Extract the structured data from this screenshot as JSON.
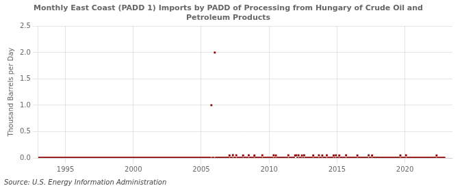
{
  "chart_data": {
    "type": "scatter",
    "title": "Monthly East Coast (PADD 1) Imports by PADD of Processing from Hungary of Crude Oil and\nPetroleum Products",
    "ylabel": "Thousand Barrels per Day",
    "annotation": "Source: U.S. Energy Information Administration",
    "color": "#8b0000",
    "marker": "square",
    "grid": true,
    "xlim": [
      1993.0,
      2023.5
    ],
    "ylim": [
      0,
      2.5
    ],
    "xticks": [
      1995,
      2000,
      2005,
      2010,
      2015,
      2020
    ],
    "yticks": [
      {
        "value": 0.0,
        "label": "0.0"
      },
      0.5,
      {
        "value": 1.0,
        "label": "1.0"
      },
      1.5,
      {
        "value": 2.0,
        "label": "2.0"
      },
      2.5
    ],
    "x": [
      1993.0,
      1993.083,
      1993.167,
      1993.25,
      1993.333,
      1993.417,
      1993.5,
      1993.583,
      1993.667,
      1993.75,
      1993.833,
      1993.917,
      1994.0,
      1994.083,
      1994.167,
      1994.25,
      1994.333,
      1994.417,
      1994.5,
      1994.583,
      1994.667,
      1994.75,
      1994.833,
      1994.917,
      1995.0,
      1995.083,
      1995.167,
      1995.25,
      1995.333,
      1995.417,
      1995.5,
      1995.583,
      1995.667,
      1995.75,
      1995.833,
      1995.917,
      1996.0,
      1996.083,
      1996.167,
      1996.25,
      1996.333,
      1996.417,
      1996.5,
      1996.583,
      1996.667,
      1996.75,
      1996.833,
      1996.917,
      1997.0,
      1997.083,
      1997.167,
      1997.25,
      1997.333,
      1997.417,
      1997.5,
      1997.583,
      1997.667,
      1997.75,
      1997.833,
      1997.917,
      1998.0,
      1998.083,
      1998.167,
      1998.25,
      1998.333,
      1998.417,
      1998.5,
      1998.583,
      1998.667,
      1998.75,
      1998.833,
      1998.917,
      1999.0,
      1999.083,
      1999.167,
      1999.25,
      1999.333,
      1999.417,
      1999.5,
      1999.583,
      1999.667,
      1999.75,
      1999.833,
      1999.917,
      2000.0,
      2000.083,
      2000.167,
      2000.25,
      2000.333,
      2000.417,
      2000.5,
      2000.583,
      2000.667,
      2000.75,
      2000.833,
      2000.917,
      2001.0,
      2001.083,
      2001.167,
      2001.25,
      2001.333,
      2001.417,
      2001.5,
      2001.583,
      2001.667,
      2001.75,
      2001.833,
      2001.917,
      2002.0,
      2002.083,
      2002.167,
      2002.25,
      2002.333,
      2002.417,
      2002.5,
      2002.583,
      2002.667,
      2002.75,
      2002.833,
      2002.917,
      2003.0,
      2003.083,
      2003.167,
      2003.25,
      2003.333,
      2003.417,
      2003.5,
      2003.583,
      2003.667,
      2003.75,
      2003.833,
      2003.917,
      2004.0,
      2004.083,
      2004.167,
      2004.25,
      2004.333,
      2004.417,
      2004.5,
      2004.583,
      2004.667,
      2004.75,
      2004.833,
      2004.917,
      2005.0,
      2005.083,
      2005.167,
      2005.25,
      2005.333,
      2005.417,
      2005.5,
      2005.583,
      2005.667,
      2005.75,
      2005.833,
      2005.917,
      2006.0,
      2006.083,
      2006.167,
      2006.25,
      2006.333,
      2006.417,
      2006.5,
      2006.583,
      2006.667,
      2006.75,
      2006.833,
      2006.917,
      2007.0,
      2007.083,
      2007.167,
      2007.25,
      2007.333,
      2007.417,
      2007.5,
      2007.583,
      2007.667,
      2007.75,
      2007.833,
      2007.917,
      2008.0,
      2008.083,
      2008.167,
      2008.25,
      2008.333,
      2008.417,
      2008.5,
      2008.583,
      2008.667,
      2008.75,
      2008.833,
      2008.917,
      2009.0,
      2009.083,
      2009.167,
      2009.25,
      2009.333,
      2009.417,
      2009.5,
      2009.583,
      2009.667,
      2009.75,
      2009.833,
      2009.917,
      2010.0,
      2010.083,
      2010.167,
      2010.25,
      2010.333,
      2010.417,
      2010.5,
      2010.583,
      2010.667,
      2010.75,
      2010.833,
      2010.917,
      2011.0,
      2011.083,
      2011.167,
      2011.25,
      2011.333,
      2011.417,
      2011.5,
      2011.583,
      2011.667,
      2011.75,
      2011.833,
      2011.917,
      2012.0,
      2012.083,
      2012.167,
      2012.25,
      2012.333,
      2012.417,
      2012.5,
      2012.583,
      2012.667,
      2012.75,
      2012.833,
      2012.917,
      2013.0,
      2013.083,
      2013.167,
      2013.25,
      2013.333,
      2013.417,
      2013.5,
      2013.583,
      2013.667,
      2013.75,
      2013.833,
      2013.917,
      2014.0,
      2014.083,
      2014.167,
      2014.25,
      2014.333,
      2014.417,
      2014.5,
      2014.583,
      2014.667,
      2014.75,
      2014.833,
      2014.917,
      2015.0,
      2015.083,
      2015.167,
      2015.25,
      2015.333,
      2015.417,
      2015.5,
      2015.583,
      2015.667,
      2015.75,
      2015.833,
      2015.917,
      2016.0,
      2016.083,
      2016.167,
      2016.25,
      2016.333,
      2016.417,
      2016.5,
      2016.583,
      2016.667,
      2016.75,
      2016.833,
      2016.917,
      2017.0,
      2017.083,
      2017.167,
      2017.25,
      2017.333,
      2017.417,
      2017.5,
      2017.583,
      2017.667,
      2017.75,
      2017.833,
      2017.917,
      2018.0,
      2018.083,
      2018.167,
      2018.25,
      2018.333,
      2018.417,
      2018.5,
      2018.583,
      2018.667,
      2018.75,
      2018.833,
      2018.917,
      2019.0,
      2019.083,
      2019.167,
      2019.25,
      2019.333,
      2019.417,
      2019.5,
      2019.583,
      2019.667,
      2019.75,
      2019.833,
      2019.917,
      2020.0,
      2020.083,
      2020.167,
      2020.25,
      2020.333,
      2020.417,
      2020.5,
      2020.583,
      2020.667,
      2020.75,
      2020.833,
      2020.917,
      2021.0,
      2021.083,
      2021.167,
      2021.25,
      2021.333,
      2021.417,
      2021.5,
      2021.583,
      2021.667,
      2021.75,
      2021.833,
      2021.917,
      2022.0,
      2022.083,
      2022.167,
      2022.25,
      2022.333,
      2022.417,
      2022.5,
      2022.583,
      2022.667,
      2022.75,
      2022.833,
      2022.917
    ],
    "values": [
      0.0,
      0.0,
      0.0,
      0.0,
      0.0,
      0.0,
      0.0,
      0.0,
      0.0,
      0.0,
      0.0,
      0.0,
      0.0,
      0.0,
      0.0,
      0.0,
      0.0,
      0.0,
      0.0,
      0.0,
      0.0,
      0.0,
      0.0,
      0.0,
      0.0,
      0.0,
      0.0,
      0.0,
      0.0,
      0.0,
      0.0,
      0.0,
      0.0,
      0.0,
      0.0,
      0.0,
      0.0,
      0.0,
      0.0,
      0.0,
      0.0,
      0.0,
      0.0,
      0.0,
      0.0,
      0.0,
      0.0,
      0.0,
      0.0,
      0.0,
      0.0,
      0.0,
      0.0,
      0.0,
      0.0,
      0.0,
      0.0,
      0.0,
      0.0,
      0.0,
      0.0,
      0.0,
      0.0,
      0.0,
      0.0,
      0.0,
      0.0,
      0.0,
      0.0,
      0.0,
      0.0,
      0.0,
      0.0,
      0.0,
      0.0,
      0.0,
      0.0,
      0.0,
      0.0,
      0.0,
      0.0,
      0.0,
      0.0,
      0.0,
      0.0,
      0.0,
      0.0,
      0.0,
      0.0,
      0.0,
      0.0,
      0.0,
      0.0,
      0.0,
      0.0,
      0.0,
      0.0,
      0.0,
      0.0,
      0.0,
      0.0,
      0.0,
      0.0,
      0.0,
      0.0,
      0.0,
      0.0,
      0.0,
      0.0,
      0.0,
      0.0,
      0.0,
      0.0,
      0.0,
      0.0,
      0.0,
      0.0,
      0.0,
      0.0,
      0.0,
      0.0,
      0.0,
      0.0,
      0.0,
      0.0,
      0.0,
      0.0,
      0.0,
      0.0,
      0.0,
      0.0,
      0.0,
      0.0,
      0.0,
      0.0,
      0.0,
      0.0,
      0.0,
      0.0,
      0.0,
      0.0,
      0.0,
      0.0,
      0.0,
      0.0,
      0.0,
      0.0,
      0.0,
      0.0,
      0.0,
      0.0,
      0.0,
      0.0,
      1.0,
      0.0,
      0.0,
      2.0,
      0.0,
      0.0,
      0.0,
      0.0,
      0.0,
      0.0,
      0.0,
      0.0,
      0.0,
      0.0,
      0.0,
      0.0,
      0.047,
      0.0,
      0.0,
      0.052,
      0.0,
      0.0,
      0.05,
      0.0,
      0.0,
      0.0,
      0.0,
      0.0,
      0.048,
      0.0,
      0.0,
      0.0,
      0.0,
      0.05,
      0.0,
      0.0,
      0.0,
      0.0,
      0.045,
      0.0,
      0.0,
      0.0,
      0.0,
      0.0,
      0.0,
      0.05,
      0.0,
      0.0,
      0.0,
      0.0,
      0.0,
      0.0,
      0.0,
      0.0,
      0.0,
      0.05,
      0.0,
      0.048,
      0.0,
      0.0,
      0.0,
      0.0,
      0.0,
      0.0,
      0.0,
      0.0,
      0.0,
      0.0,
      0.05,
      0.0,
      0.0,
      0.0,
      0.0,
      0.0,
      0.048,
      0.05,
      0.0,
      0.05,
      0.0,
      0.0,
      0.048,
      0.0,
      0.05,
      0.0,
      0.0,
      0.0,
      0.0,
      0.0,
      0.0,
      0.0,
      0.048,
      0.0,
      0.0,
      0.0,
      0.0,
      0.05,
      0.0,
      0.0,
      0.048,
      0.0,
      0.0,
      0.0,
      0.05,
      0.0,
      0.0,
      0.0,
      0.0,
      0.0,
      0.048,
      0.0,
      0.05,
      0.0,
      0.0,
      0.048,
      0.0,
      0.0,
      0.0,
      0.0,
      0.0,
      0.05,
      0.0,
      0.0,
      0.0,
      0.0,
      0.0,
      0.0,
      0.0,
      0.0,
      0.0,
      0.048,
      0.0,
      0.0,
      0.0,
      0.0,
      0.0,
      0.0,
      0.0,
      0.0,
      0.0,
      0.05,
      0.0,
      0.0,
      0.048,
      0.0,
      0.0,
      0.0,
      0.0,
      0.0,
      0.0,
      0.0,
      0.0,
      0.0,
      0.0,
      0.0,
      0.0,
      0.0,
      0.0,
      0.0,
      0.0,
      0.0,
      0.0,
      0.0,
      0.0,
      0.0,
      0.0,
      0.0,
      0.0,
      0.048,
      0.0,
      0.0,
      0.0,
      0.0,
      0.05,
      0.0,
      0.0,
      0.0,
      0.0,
      0.0,
      0.0,
      0.0,
      0.0,
      0.0,
      0.0,
      0.0,
      0.0,
      0.0,
      0.0,
      0.0,
      0.0,
      0.0,
      0.0,
      0.0,
      0.0,
      0.0,
      0.0,
      0.0,
      0.0,
      0.0,
      0.0,
      0.048,
      0.0,
      0.0,
      0.0,
      0.0,
      0.0,
      0.0,
      0.0
    ]
  }
}
